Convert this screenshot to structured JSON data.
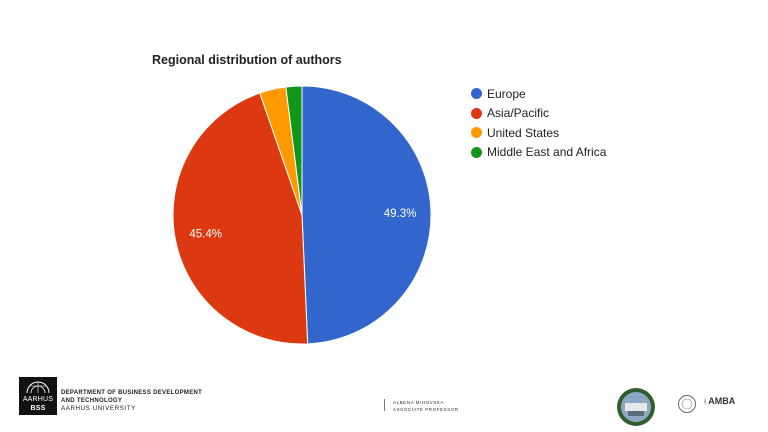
{
  "chart_data": {
    "type": "pie",
    "title": "Regional distribution of authors",
    "slices": [
      {
        "label": "Europe",
        "value": 49.3,
        "color": "#3366cc",
        "data_label": "49.3%"
      },
      {
        "label": "Asia/Pacific",
        "value": 45.4,
        "color": "#dc3912",
        "data_label": "45.4%"
      },
      {
        "label": "United States",
        "value": 3.3,
        "color": "#ff9900",
        "data_label": ""
      },
      {
        "label": "Middle East and Africa",
        "value": 2.0,
        "color": "#109618",
        "data_label": ""
      }
    ],
    "legend_position": "right"
  },
  "footer": {
    "logo_top": "AARHUS",
    "logo_bottom": "BSS",
    "dept_line1": "DEPARTMENT OF BUSINESS DEVELOPMENT",
    "dept_line2": "AND TECHNOLOGY",
    "university": "AARHUS UNIVERSITY",
    "person_name": "ALBENA  MIHOVSKA",
    "person_title": "ASSOCIATE PROFESSOR",
    "badge_text": "AMBA"
  }
}
